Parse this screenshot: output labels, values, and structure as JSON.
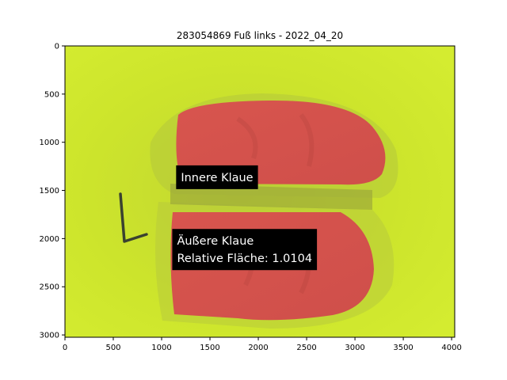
{
  "chart_data": {
    "type": "image",
    "title": "283054869 Fuß links - 2022_04_20",
    "xlim": [
      0,
      4032
    ],
    "ylim": [
      3024,
      0
    ],
    "y_inverted": true,
    "x_ticks": [
      0,
      500,
      1000,
      1500,
      2000,
      2500,
      3000,
      3500,
      4000
    ],
    "y_ticks": [
      0,
      500,
      1000,
      1500,
      2000,
      2500,
      3000
    ],
    "x_tick_labels": [
      "0",
      "500",
      "1000",
      "1500",
      "2000",
      "2500",
      "3000",
      "3500",
      "4000"
    ],
    "y_tick_labels": [
      "0",
      "500",
      "1000",
      "1500",
      "2000",
      "2500",
      "3000"
    ],
    "annotations": [
      {
        "lines": [
          "Innere Klaue"
        ],
        "x": 1150,
        "y": 1240
      },
      {
        "lines": [
          "Äußere Klaue",
          "Relative Fläche: 1.0104"
        ],
        "x": 1110,
        "y": 1900
      }
    ],
    "regions": [
      {
        "name": "inner-claw-mask",
        "color": "#d9605a"
      },
      {
        "name": "outer-claw-mask",
        "color": "#d9605a"
      }
    ],
    "background_color": "#c9e32a",
    "grid": false
  }
}
